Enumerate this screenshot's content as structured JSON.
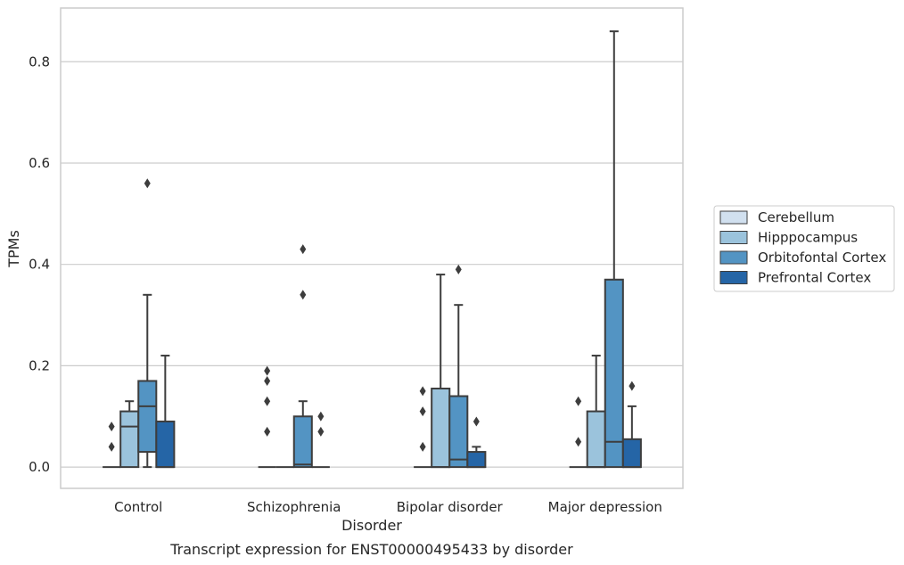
{
  "chart_data": {
    "type": "box",
    "caption": "Transcript expression for ENST00000495433 by disorder",
    "xlabel": "Disorder",
    "ylabel": "TPMs",
    "ylim": [
      -0.042,
      0.906
    ],
    "yticks": [
      0.0,
      0.2,
      0.4,
      0.6,
      0.8
    ],
    "ytick_labels": [
      "0.0",
      "0.2",
      "0.4",
      "0.6",
      "0.8"
    ],
    "grid": "horizontal",
    "legend_position": "right",
    "categories": [
      "Control",
      "Schizophrenia",
      "Bipolar disorder",
      "Major depression"
    ],
    "series": [
      {
        "name": "Cerebellum",
        "color": "#d1e0ef",
        "boxes": [
          {
            "q1": 0,
            "median": 0,
            "q3": 0,
            "whisker_low": 0,
            "whisker_high": 0,
            "outliers": [
              0.04,
              0.08
            ]
          },
          {
            "q1": 0,
            "median": 0,
            "q3": 0,
            "whisker_low": 0,
            "whisker_high": 0,
            "outliers": [
              0.07,
              0.13,
              0.17,
              0.19
            ]
          },
          {
            "q1": 0,
            "median": 0,
            "q3": 0,
            "whisker_low": 0,
            "whisker_high": 0,
            "outliers": [
              0.04,
              0.11,
              0.15
            ]
          },
          {
            "q1": 0,
            "median": 0,
            "q3": 0,
            "whisker_low": 0,
            "whisker_high": 0,
            "outliers": [
              0.05,
              0.13
            ]
          }
        ]
      },
      {
        "name": "Hipppocampus",
        "color": "#9bc3dc",
        "boxes": [
          {
            "q1": 0,
            "median": 0.08,
            "q3": 0.11,
            "whisker_low": 0,
            "whisker_high": 0.13,
            "outliers": []
          },
          {
            "q1": 0,
            "median": 0,
            "q3": 0,
            "whisker_low": 0,
            "whisker_high": 0,
            "outliers": []
          },
          {
            "q1": 0,
            "median": 0,
            "q3": 0.155,
            "whisker_low": 0,
            "whisker_high": 0.38,
            "outliers": []
          },
          {
            "q1": 0,
            "median": 0,
            "q3": 0.11,
            "whisker_low": 0,
            "whisker_high": 0.22,
            "outliers": []
          }
        ]
      },
      {
        "name": "Orbitofontal Cortex",
        "color": "#5394c3",
        "boxes": [
          {
            "q1": 0.03,
            "median": 0.12,
            "q3": 0.17,
            "whisker_low": 0,
            "whisker_high": 0.34,
            "outliers": [
              0.56
            ]
          },
          {
            "q1": 0,
            "median": 0.005,
            "q3": 0.1,
            "whisker_low": 0,
            "whisker_high": 0.13,
            "outliers": [
              0.34,
              0.43
            ]
          },
          {
            "q1": 0,
            "median": 0.015,
            "q3": 0.14,
            "whisker_low": 0,
            "whisker_high": 0.32,
            "outliers": [
              0.39
            ]
          },
          {
            "q1": 0,
            "median": 0.05,
            "q3": 0.37,
            "whisker_low": 0,
            "whisker_high": 0.86,
            "outliers": []
          }
        ]
      },
      {
        "name": "Prefrontal Cortex",
        "color": "#2565a6",
        "boxes": [
          {
            "q1": 0,
            "median": 0,
            "q3": 0.09,
            "whisker_low": 0,
            "whisker_high": 0.22,
            "outliers": []
          },
          {
            "q1": 0,
            "median": 0,
            "q3": 0,
            "whisker_low": 0,
            "whisker_high": 0,
            "outliers": [
              0.07,
              0.1
            ]
          },
          {
            "q1": 0,
            "median": 0,
            "q3": 0.03,
            "whisker_low": 0,
            "whisker_high": 0.04,
            "outliers": [
              0.09
            ]
          },
          {
            "q1": 0,
            "median": 0,
            "q3": 0.055,
            "whisker_low": 0,
            "whisker_high": 0.12,
            "outliers": [
              0.16
            ]
          }
        ]
      }
    ]
  }
}
